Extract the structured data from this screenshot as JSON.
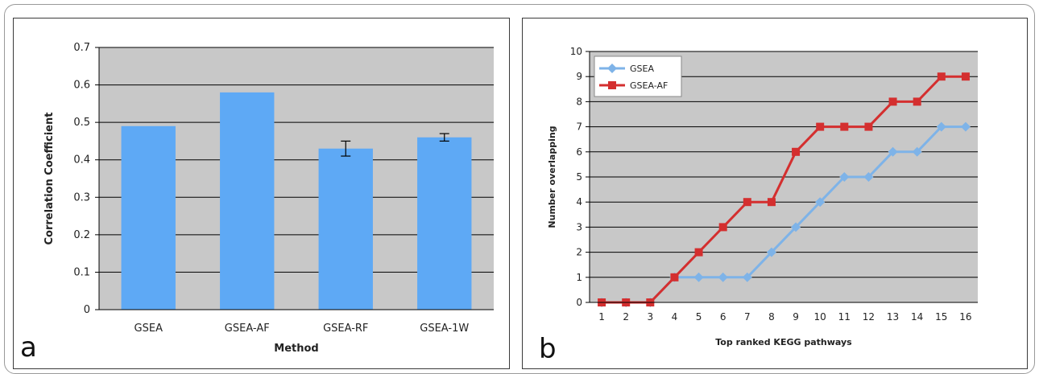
{
  "chart_data": [
    {
      "type": "bar",
      "panel_label": "a",
      "categories": [
        "GSEA",
        "GSEA-AF",
        "GSEA-RF",
        "GSEA-1W"
      ],
      "values": [
        0.49,
        0.58,
        0.43,
        0.46
      ],
      "error": [
        null,
        null,
        0.02,
        0.01
      ],
      "xlabel": "Method",
      "ylabel": "Correlation Coefficient",
      "ylim": [
        0,
        0.7
      ],
      "yticks": [
        "0",
        "0.1",
        "0.2",
        "0.3",
        "0.4",
        "0.5",
        "0.6",
        "0.7"
      ],
      "grid": true,
      "colors": {
        "bar": "#5ea9f5",
        "plot_bg": "#c8c8c8"
      }
    },
    {
      "type": "line",
      "panel_label": "b",
      "x": [
        1,
        2,
        3,
        4,
        5,
        6,
        7,
        8,
        9,
        10,
        11,
        12,
        13,
        14,
        15,
        16
      ],
      "xticks": [
        "1",
        "2",
        "3",
        "4",
        "5",
        "6",
        "7",
        "8",
        "9",
        "10",
        "11",
        "12",
        "13",
        "14",
        "15",
        "16"
      ],
      "series": [
        {
          "name": "GSEA",
          "values": [
            0,
            0,
            0,
            1,
            1,
            1,
            1,
            2,
            3,
            4,
            5,
            5,
            6,
            6,
            7,
            7
          ],
          "color": "#7eb3e8",
          "marker": "diamond"
        },
        {
          "name": "GSEA-AF",
          "values": [
            0,
            0,
            0,
            1,
            2,
            3,
            4,
            4,
            6,
            7,
            7,
            7,
            8,
            8,
            9,
            9
          ],
          "color": "#d42f2f",
          "marker": "square"
        }
      ],
      "xlabel": "Top ranked KEGG pathways",
      "ylabel": "Number overlapping",
      "ylim": [
        0,
        10
      ],
      "yticks": [
        "0",
        "1",
        "2",
        "3",
        "4",
        "5",
        "6",
        "7",
        "8",
        "9",
        "10"
      ],
      "grid": true,
      "legend": "top-left",
      "colors": {
        "plot_bg": "#c8c8c8"
      }
    }
  ]
}
